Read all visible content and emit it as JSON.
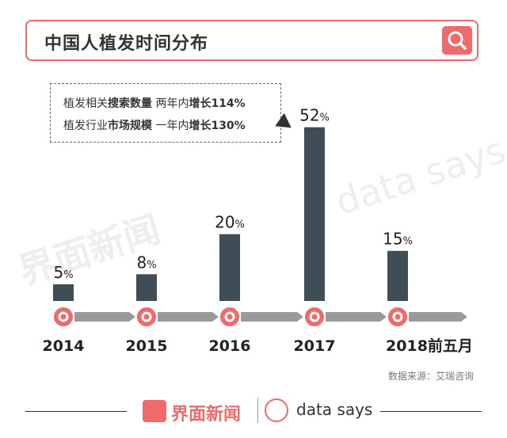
{
  "header": {
    "title": "中国人植发时间分布",
    "search_icon": "search-icon"
  },
  "annotation": {
    "line1": {
      "prefix": "植发相关",
      "bold1": "搜索数量",
      "mid": " 两年内",
      "bold2": "增长114%"
    },
    "line2": {
      "prefix": "植发行业",
      "bold1": "市场规模",
      "mid": " 一年内",
      "bold2": "增长130%"
    }
  },
  "chart_data": {
    "type": "bar",
    "categories": [
      "2014",
      "2015",
      "2016",
      "2017",
      "2018前五月"
    ],
    "values": [
      5,
      8,
      20,
      52,
      15
    ],
    "value_labels": [
      {
        "num": "5",
        "unit": "%"
      },
      {
        "num": "8",
        "unit": "%"
      },
      {
        "num": "20",
        "unit": "%"
      },
      {
        "num": "52",
        "unit": "%"
      },
      {
        "num": "15",
        "unit": "%"
      }
    ],
    "title": "中国人植发时间分布",
    "ylim": [
      0,
      55
    ],
    "bar_color": "#3f4d57",
    "marker_color": "#ef6b6b",
    "arrow_color": "#9a9a9a"
  },
  "source": "数据来源：艾瑞咨询",
  "watermarks": {
    "cn": "界面新闻",
    "en": "data says"
  },
  "footer": {
    "brand_cn": "界面新闻",
    "brand_en": "data says"
  }
}
